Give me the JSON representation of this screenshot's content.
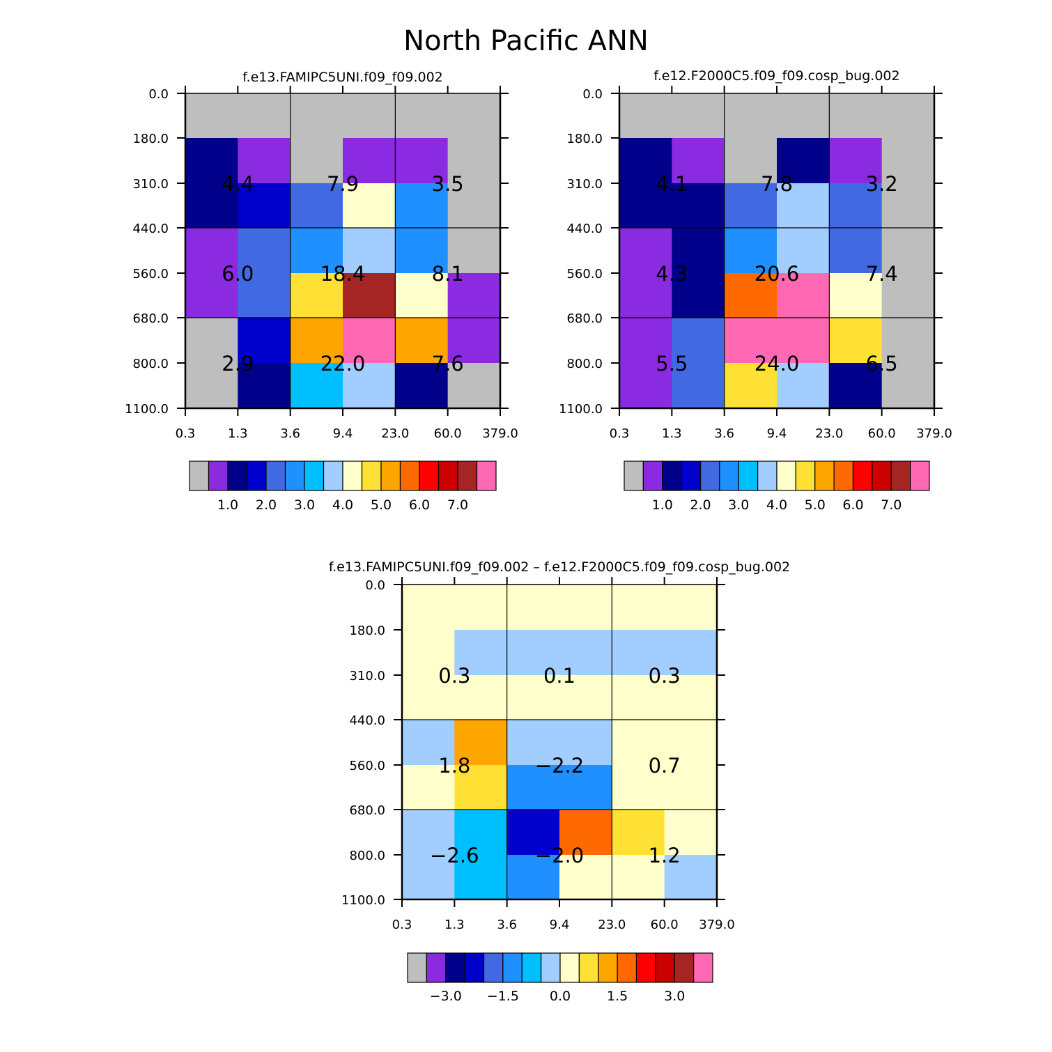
{
  "title": "North Pacific ANN",
  "palette": {
    "missing": "#BEBEBE",
    "bins": [
      "#8A2BE2",
      "#00008B",
      "#0000CD",
      "#4169E1",
      "#1E90FF",
      "#00BFFF",
      "#A2CDFF",
      "#FFFFCC",
      "#FFE135",
      "#FFA500",
      "#FF6A00",
      "#FF0000",
      "#CD0000",
      "#A52424",
      "#FF69B4"
    ]
  },
  "chart_data": [
    {
      "type": "heatmap",
      "title": "f.e13.FAMIPC5UNI.f09_f09.002",
      "x_ticks": [
        "0.3",
        "1.3",
        "3.6",
        "9.4",
        "23.0",
        "60.0",
        "379.0"
      ],
      "y_ticks": [
        "0.0",
        "180.0",
        "310.0",
        "440.0",
        "560.0",
        "680.0",
        "800.0",
        "1100.0"
      ],
      "cells": [
        [
          "M",
          "M",
          "M",
          "M",
          "M",
          "M"
        ],
        [
          1,
          0,
          "M",
          0,
          0,
          "M"
        ],
        [
          1,
          2,
          3,
          7,
          4,
          "M"
        ],
        [
          0,
          3,
          4,
          6,
          4,
          "M"
        ],
        [
          0,
          3,
          8,
          13,
          7,
          0
        ],
        [
          "M",
          2,
          9,
          14,
          9,
          0
        ],
        [
          "M",
          1,
          5,
          6,
          1,
          "M"
        ]
      ],
      "group_values": [
        [
          "4.4",
          "7.9",
          "3.5"
        ],
        [
          "6.0",
          "18.4",
          "8.1"
        ],
        [
          "2.9",
          "22.0",
          "7.6"
        ]
      ],
      "colorbar": {
        "labels": [
          "1.0",
          "2.0",
          "3.0",
          "4.0",
          "5.0",
          "6.0",
          "7.0"
        ]
      }
    },
    {
      "type": "heatmap",
      "title": "f.e12.F2000C5.f09_f09.cosp_bug.002",
      "x_ticks": [
        "0.3",
        "1.3",
        "3.6",
        "9.4",
        "23.0",
        "60.0",
        "379.0"
      ],
      "y_ticks": [
        "0.0",
        "180.0",
        "310.0",
        "440.0",
        "560.0",
        "680.0",
        "800.0",
        "1100.0"
      ],
      "cells": [
        [
          "M",
          "M",
          "M",
          "M",
          "M",
          "M"
        ],
        [
          1,
          0,
          "M",
          1,
          0,
          "M"
        ],
        [
          1,
          1,
          3,
          6,
          3,
          "M"
        ],
        [
          0,
          1,
          4,
          6,
          3,
          "M"
        ],
        [
          0,
          1,
          10,
          14,
          7,
          "M"
        ],
        [
          0,
          3,
          14,
          14,
          8,
          "M"
        ],
        [
          0,
          3,
          8,
          6,
          1,
          "M"
        ]
      ],
      "group_values": [
        [
          "4.1",
          "7.8",
          "3.2"
        ],
        [
          "4.3",
          "20.6",
          "7.4"
        ],
        [
          "5.5",
          "24.0",
          "6.5"
        ]
      ],
      "colorbar": {
        "labels": [
          "1.0",
          "2.0",
          "3.0",
          "4.0",
          "5.0",
          "6.0",
          "7.0"
        ]
      }
    },
    {
      "type": "heatmap",
      "title": "f.e13.FAMIPC5UNI.f09_f09.002 – f.e12.F2000C5.f09_f09.cosp_bug.002",
      "x_ticks": [
        "0.3",
        "1.3",
        "3.6",
        "9.4",
        "23.0",
        "60.0",
        "379.0"
      ],
      "y_ticks": [
        "0.0",
        "180.0",
        "310.0",
        "440.0",
        "560.0",
        "680.0",
        "800.0",
        "1100.0"
      ],
      "cells": [
        [
          7,
          7,
          7,
          7,
          7,
          7
        ],
        [
          7,
          6,
          6,
          6,
          6,
          6
        ],
        [
          7,
          7,
          7,
          7,
          7,
          7
        ],
        [
          6,
          9,
          6,
          6,
          7,
          7
        ],
        [
          7,
          8,
          4,
          4,
          7,
          7
        ],
        [
          6,
          5,
          2,
          10,
          8,
          7
        ],
        [
          6,
          5,
          4,
          7,
          7,
          6
        ]
      ],
      "group_values": [
        [
          "0.3",
          "0.1",
          "0.3"
        ],
        [
          "1.8",
          "−2.2",
          "0.7"
        ],
        [
          "−2.6",
          "−2.0",
          "1.2"
        ]
      ],
      "colorbar": {
        "labels": [
          "−3.0",
          "−1.5",
          "0.0",
          "1.5",
          "3.0"
        ]
      }
    }
  ]
}
